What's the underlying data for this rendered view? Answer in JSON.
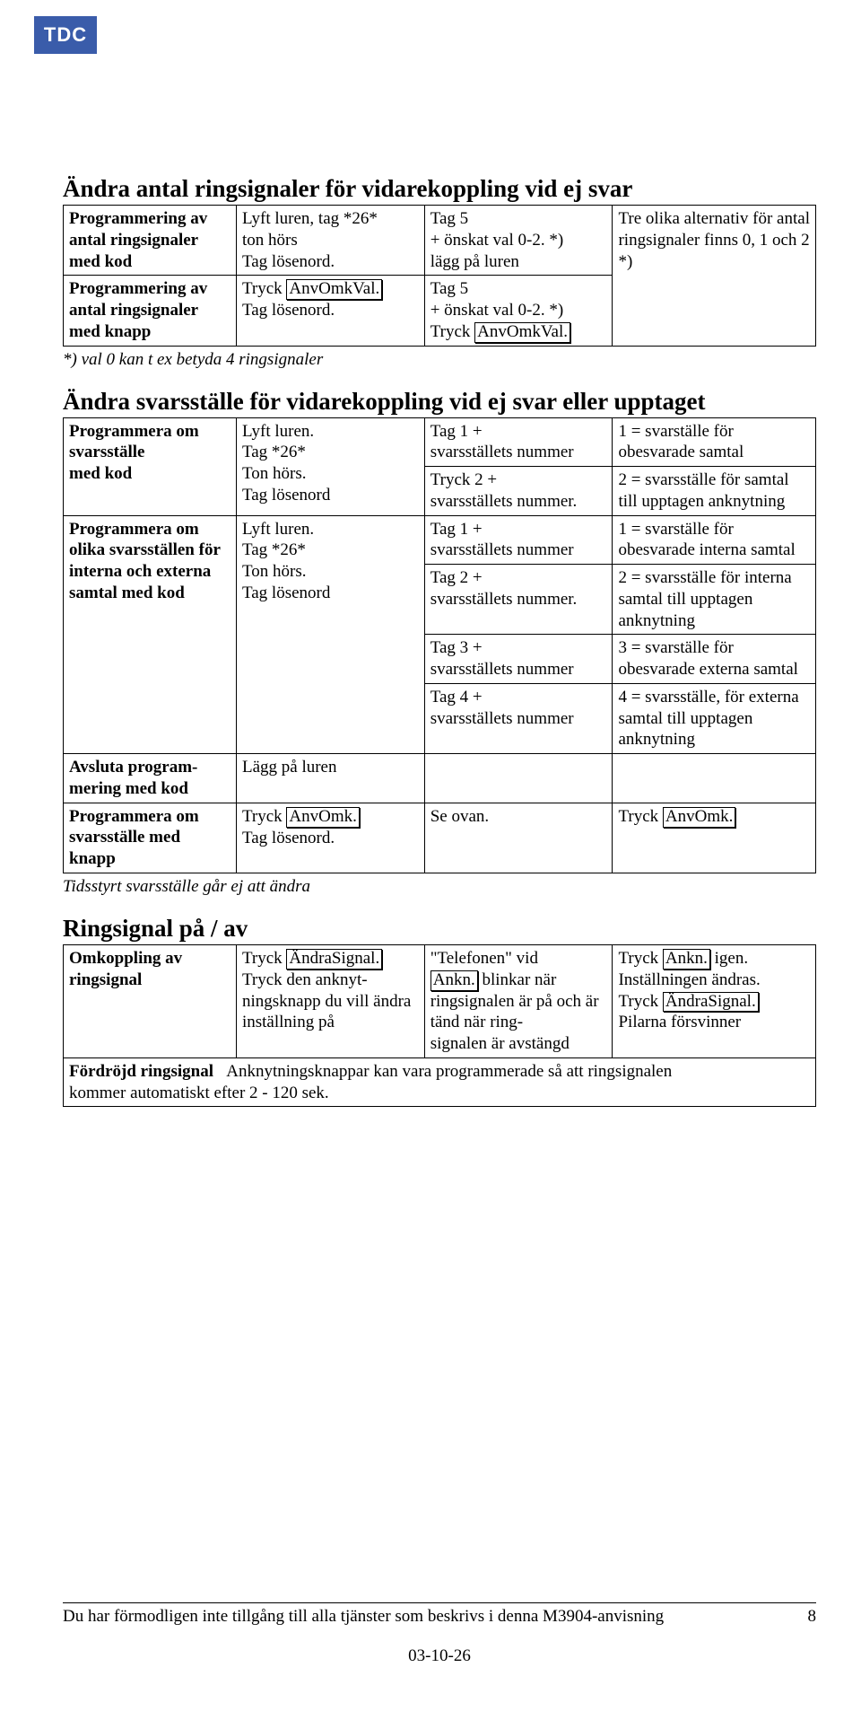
{
  "logo": "TDC",
  "section1": {
    "title": "Ändra antal ringsignaler för vidarekoppling vid ej svar",
    "r1_c1": "Programmering av antal ringsignaler med kod",
    "r1_c2a": "Lyft luren, tag ",
    "r1_c2b": "*26*",
    "r1_c2c": " ton hörs",
    "r1_c2d": "Tag lösenord.",
    "r1_c3a": "Tag 5",
    "r1_c3b": "+ önskat val  0-2.",
    "r1_c3b_sup": " *)",
    "r1_c3c": "lägg på luren",
    "r12_c4a": "Tre olika alternativ för antal ringsignaler finns 0, 1 och 2 ",
    "r12_c4b": " *)",
    "r2_c1": "Programmering av antal ringsignaler med knapp",
    "r2_c2a": "Tryck ",
    "r2_c2btn": "AnvOmkVal.",
    "r2_c2b": "Tag lösenord.",
    "r2_c3a": "Tag 5",
    "r2_c3b": "+ önskat val  0-2.",
    "r2_c3b_sup": " *)",
    "r2_c3c": "Tryck ",
    "r2_c3btn": "AnvOmkVal.",
    "note1": "*) val 0 kan t ex betyda 4 ringsignaler"
  },
  "section2": {
    "title": "Ändra svarsställe för vidarekoppling vid ej svar eller upptaget",
    "r1_c1": "Programmera om svarsställe\nmed kod",
    "r1_c2": "Lyft luren.\nTag *26*\nTon hörs.\nTag lösenord",
    "r1a_c3": "Tag 1 +\nsvarsställets nummer",
    "r1a_c4": "1 = svarställe för obesvarade samtal",
    "r1b_c3": "Tryck 2 +\nsvarsställets nummer.",
    "r1b_c4": "2 = svarsställe för samtal till upptagen anknytning",
    "r2_c1": "Programmera om olika svarsställen för interna och externa samtal med kod",
    "r2_c2": "Lyft luren.\nTag *26*\nTon hörs.\nTag lösenord",
    "r2a_c3": "Tag 1 +\nsvarsställets nummer",
    "r2a_c4": "1 = svarställe för obesvarade interna samtal",
    "r2b_c3": "Tag 2 +\nsvarsställets nummer.",
    "r2b_c4": "2 = svarsställe för interna samtal till upptagen anknytning",
    "r2c_c3": "Tag 3 +\nsvarsställets nummer",
    "r2c_c4": "3 = svarställe för obesvarade externa samtal",
    "r2d_c3": "Tag 4 +\nsvarsställets nummer",
    "r2d_c4": "4 = svarsställe, för externa samtal till upptagen anknytning",
    "r3_c1": "Avsluta program-\nmering med kod",
    "r3_c2": "Lägg på luren",
    "r4_c1": "Programmera om svarsställe med knapp",
    "r4_c2a": "Tryck ",
    "r4_c2btn": "AnvOmk.",
    "r4_c2b": "Tag lösenord.",
    "r4_c3": "Se ovan.",
    "r4_c4a": "Tryck ",
    "r4_c4btn": "AnvOmk.",
    "note2": "Tidsstyrt svarsställe går ej att ändra"
  },
  "section3": {
    "title": "Ringsignal på / av",
    "r1_c1": "Omkoppling av ringsignal",
    "r1_c2a": "Tryck ",
    "r1_c2btn": "ÄndraSignal.",
    "r1_c2b": "Tryck den anknyt-\nningsknapp du vill ändra inställning på",
    "r1_c3a": "\"Telefonen\" vid",
    "r1_c3btn": "Ankn.",
    "r1_c3b": " blinkar när ringsignalen är på och är tänd när ring-\nsignalen är avstängd",
    "r1_c4a": "Tryck ",
    "r1_c4btn1": "Ankn.",
    "r1_c4a2": " igen.",
    "r1_c4b": "Inställningen ändras.",
    "r1_c4c": "Tryck ",
    "r1_c4btn2": "ÄndraSignal.",
    "r1_c4d": "Pilarna försvinner",
    "r2_c1": "Fördröjd ringsignal",
    "r2_rest": "Anknytningsknappar kan vara programmerade så att ringsignalen",
    "r2_line2": "kommer automatiskt efter 2 - 120 sek."
  },
  "footer": {
    "text": "Du har förmodligen inte tillgång till alla tjänster som beskrivs i denna M3904-anvisning",
    "page": "8",
    "date": "03-10-26"
  }
}
